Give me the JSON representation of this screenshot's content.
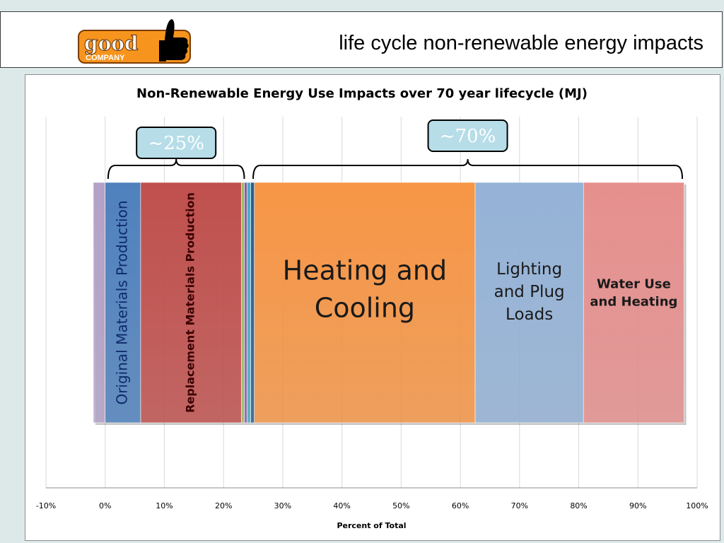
{
  "slide": {
    "title": "life cycle non-renewable energy impacts",
    "logo": {
      "text_line1": "good",
      "text_line2": "COMPANY",
      "icon": "thumbs-up-icon",
      "color": "#f7941d"
    }
  },
  "chart_data": {
    "type": "bar",
    "orientation": "horizontal-stacked",
    "title": "Non-Renewable Energy Use Impacts over 70 year lifecycle (MJ)",
    "xlabel": "Percent of Total",
    "ylabel": "",
    "xlim": [
      -10,
      100
    ],
    "xticks": [
      "-10%",
      "0%",
      "10%",
      "20%",
      "30%",
      "40%",
      "50%",
      "60%",
      "70%",
      "80%",
      "90%",
      "100%"
    ],
    "grid": true,
    "series": [
      {
        "label": "",
        "start": -2,
        "end": 0,
        "color": "#b3a2c7"
      },
      {
        "label": "Original Materials Production",
        "start": 0,
        "end": 6,
        "color": "#4f81bd",
        "label_orient": "vertical",
        "label_color": "#0d2a6b"
      },
      {
        "label": "Replacement Materials Production",
        "start": 6,
        "end": 23,
        "color": "#c0504d",
        "label_orient": "vertical",
        "label_bold": true,
        "label_color": "#3a0000"
      },
      {
        "label": "",
        "start": 23,
        "end": 23.5,
        "color": "#9bbb59"
      },
      {
        "label": "",
        "start": 23.5,
        "end": 24,
        "color": "#8064a2"
      },
      {
        "label": "",
        "start": 24,
        "end": 24.6,
        "color": "#4bacc6"
      },
      {
        "label": "",
        "start": 24.6,
        "end": 25.2,
        "color": "#2c5b8f"
      },
      {
        "label": "Heating and Cooling",
        "start": 25.2,
        "end": 62.5,
        "color": "#f79646",
        "label_size": 38
      },
      {
        "label": "Lighting and Plug Loads",
        "start": 62.5,
        "end": 80.8,
        "color": "#95b3d7",
        "label_size": 23
      },
      {
        "label": "Water Use and Heating",
        "start": 80.8,
        "end": 97.8,
        "color": "#e6908e",
        "label_size": 18,
        "label_bold": true
      }
    ],
    "annotations": [
      {
        "text": "~25%",
        "from": 0.5,
        "to": 23.5
      },
      {
        "text": "~70%",
        "from": 25,
        "to": 97.5
      }
    ]
  }
}
